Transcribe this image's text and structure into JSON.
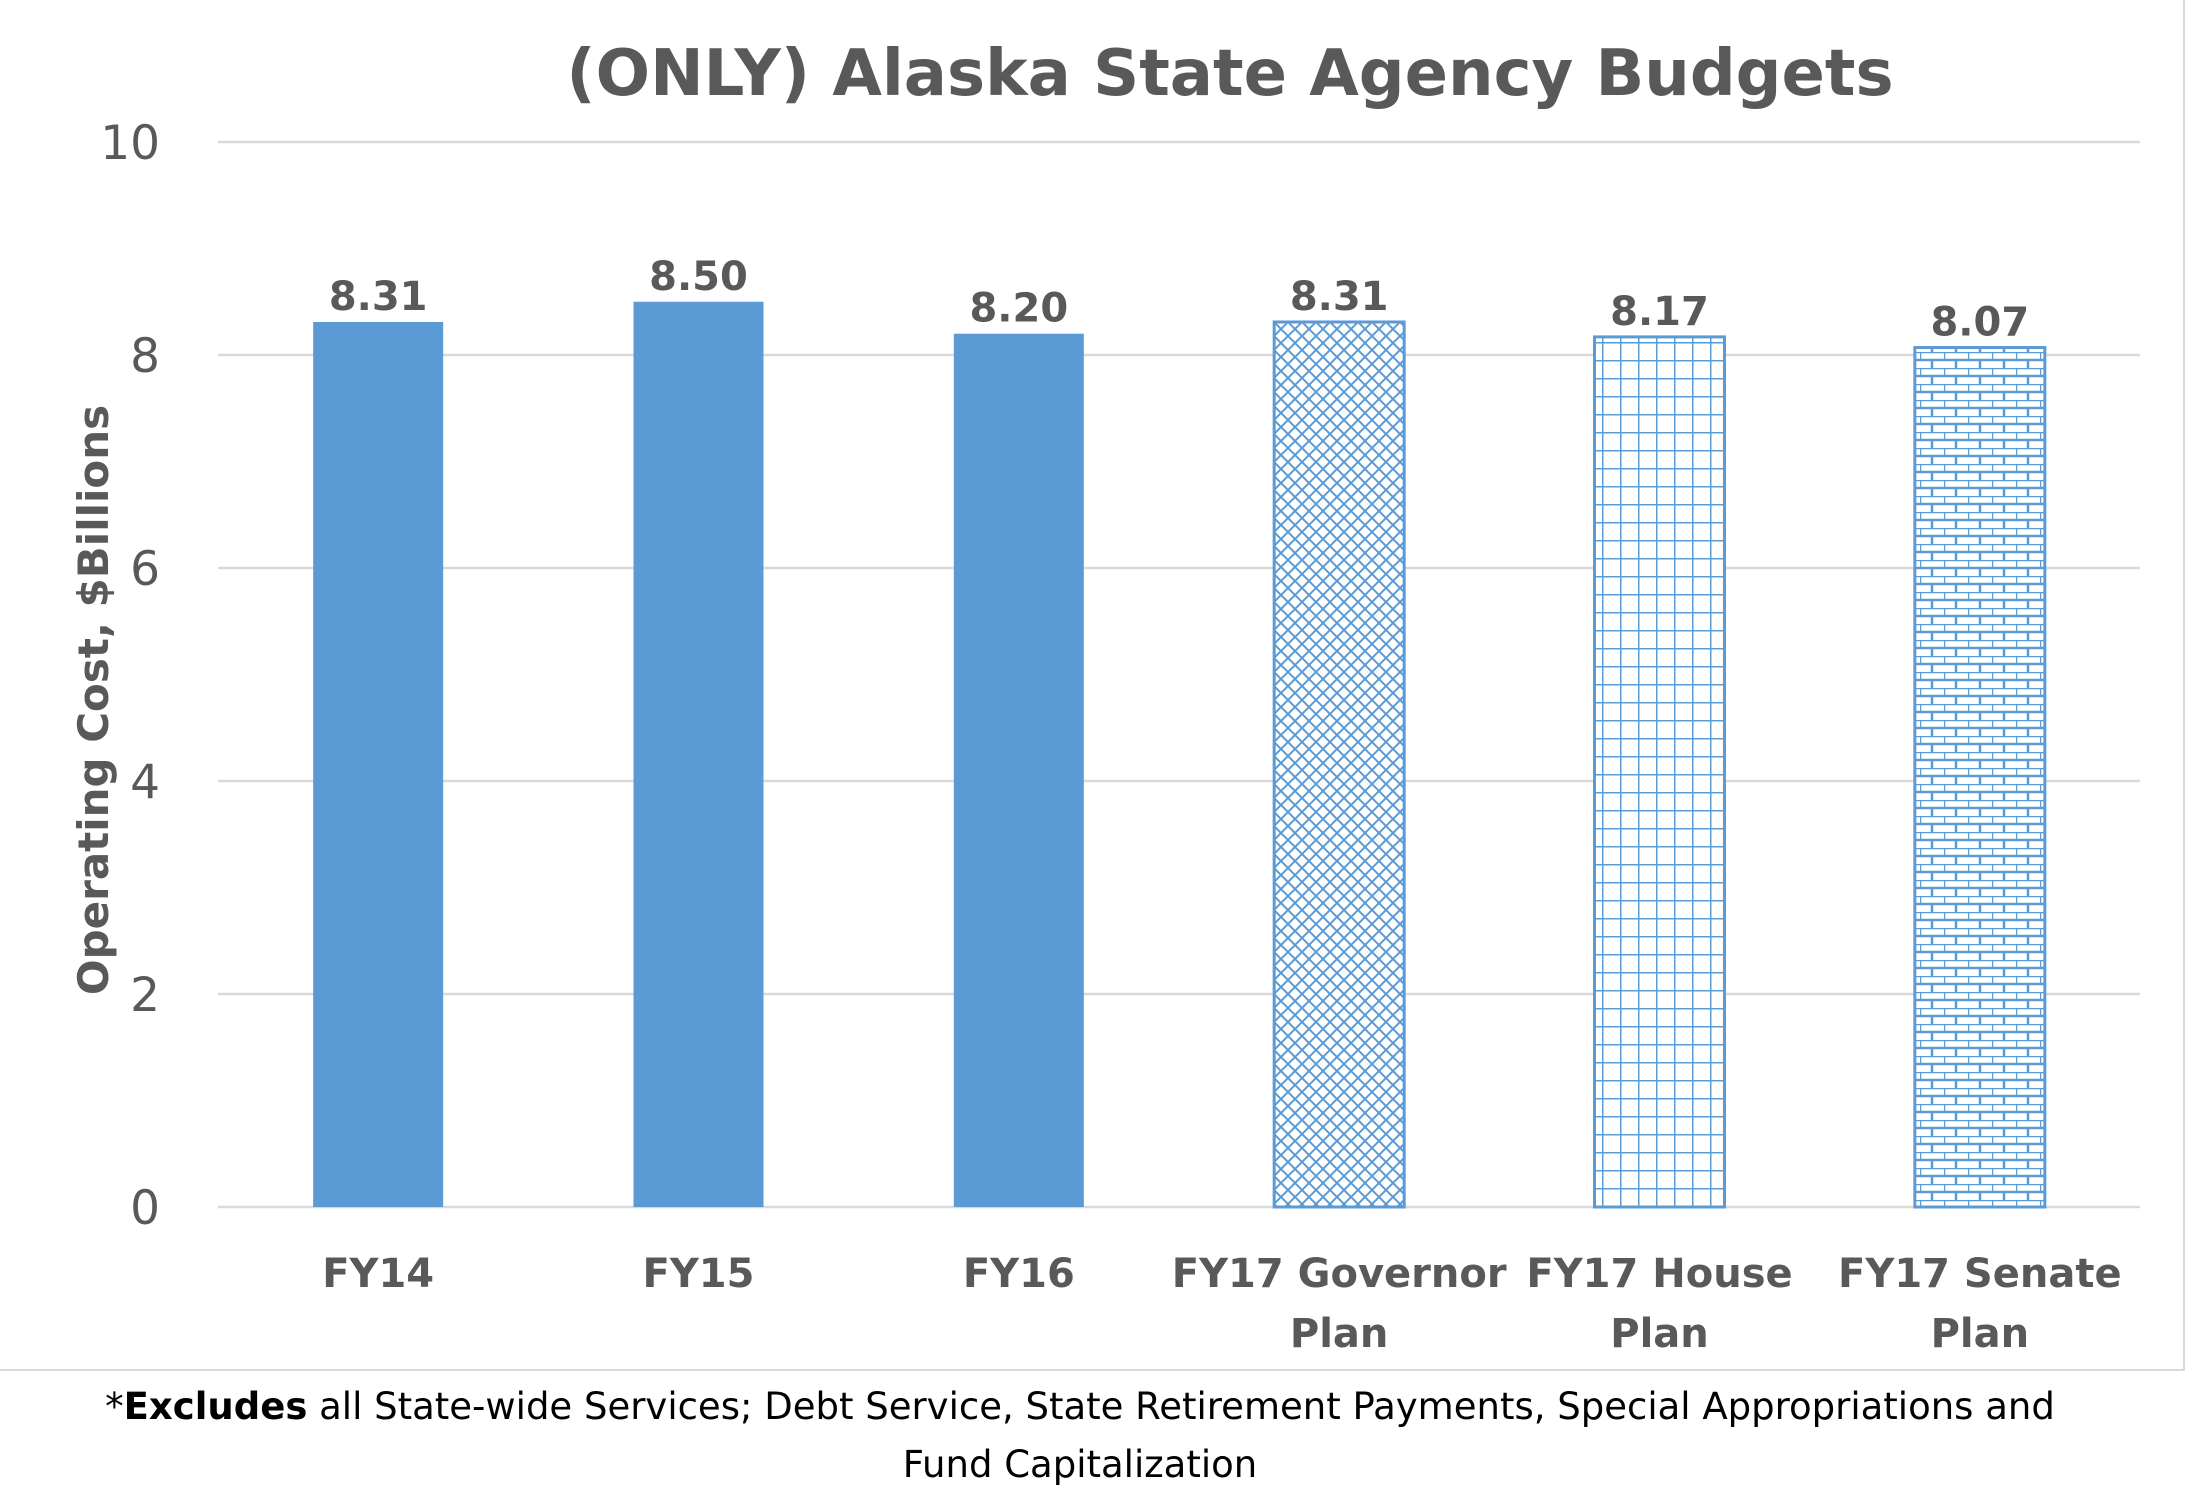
{
  "chart_data": {
    "type": "bar",
    "title": "(ONLY) Alaska State Agency Budgets",
    "ylabel": "Operating Cost, $Billions",
    "xlabel": "",
    "ylim": [
      0,
      10
    ],
    "yticks": [
      0,
      2,
      4,
      6,
      8,
      10
    ],
    "grid": true,
    "legend": "none",
    "categories": [
      [
        "FY14"
      ],
      [
        "FY15"
      ],
      [
        "FY16"
      ],
      [
        "FY17 Governor",
        "Plan"
      ],
      [
        "FY17 House",
        "Plan"
      ],
      [
        "FY17 Senate",
        "Plan"
      ]
    ],
    "values": [
      8.31,
      8.5,
      8.2,
      8.31,
      8.17,
      8.07
    ],
    "data_labels": [
      "8.31",
      "8.50",
      "8.20",
      "8.31",
      "8.17",
      "8.07"
    ],
    "fills": [
      "solid",
      "solid",
      "solid",
      "diagonal-cross",
      "grid",
      "brick"
    ],
    "colors": {
      "bar": "#5b9bd5",
      "text": "#595959",
      "grid": "#d9d9d9"
    }
  },
  "footnote": {
    "prefix": "*",
    "bold": "Excludes",
    "line1_rest": " all State-wide Services; Debt Service, State Retirement Payments, Special Appropriations and",
    "line2": "Fund Capitalization"
  }
}
